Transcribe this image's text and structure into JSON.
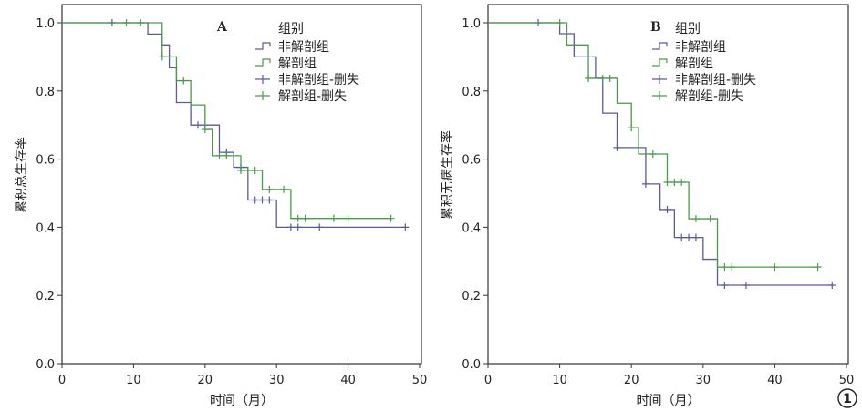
{
  "figure_number": "1",
  "chart_data": [
    {
      "type": "line",
      "subtype": "kaplan-meier step",
      "panel_label": "A",
      "xlabel": "时间（月）",
      "ylabel": "累积总生存率",
      "xlim": [
        0,
        50
      ],
      "ylim": [
        0,
        1.0
      ],
      "xticks": [
        "0",
        "10",
        "20",
        "30",
        "40",
        "50"
      ],
      "yticks": [
        "0.0",
        "0.2",
        "0.4",
        "0.6",
        "0.8",
        "1.0"
      ],
      "legend": {
        "title": "组别",
        "placement": "top-right",
        "entries": [
          "非解剖组",
          "解剖组",
          "非解剖组-删失",
          "解剖组-删失"
        ]
      },
      "series": [
        {
          "name": "非解剖组",
          "color": "#5a5b9a",
          "steps": [
            [
              0,
              1.0
            ],
            [
              12,
              0.967
            ],
            [
              14,
              0.935
            ],
            [
              15,
              0.868
            ],
            [
              16,
              0.766
            ],
            [
              18,
              0.7
            ],
            [
              22,
              0.62
            ],
            [
              24,
              0.576
            ],
            [
              26,
              0.48
            ],
            [
              30,
              0.4
            ]
          ],
          "end": 48,
          "censored": [
            7,
            19,
            23,
            25,
            27,
            28,
            29,
            32,
            33,
            36,
            48
          ]
        },
        {
          "name": "解剖组",
          "color": "#4a9a4a",
          "steps": [
            [
              0,
              1.0
            ],
            [
              14,
              0.9
            ],
            [
              16,
              0.83
            ],
            [
              18,
              0.759
            ],
            [
              20,
              0.687
            ],
            [
              21,
              0.61
            ],
            [
              25,
              0.567
            ],
            [
              28,
              0.511
            ],
            [
              32,
              0.426
            ]
          ],
          "end": 46,
          "censored": [
            9,
            11,
            14,
            17,
            20,
            22,
            23,
            25,
            26,
            27,
            29,
            31,
            33,
            34,
            38,
            40,
            46
          ]
        }
      ]
    },
    {
      "type": "line",
      "subtype": "kaplan-meier step",
      "panel_label": "B",
      "xlabel": "时间（月）",
      "ylabel": "累积无病生存率",
      "xlim": [
        0,
        50
      ],
      "ylim": [
        0,
        1.0
      ],
      "xticks": [
        "0",
        "10",
        "20",
        "30",
        "40",
        "50"
      ],
      "yticks": [
        "0.0",
        "0.2",
        "0.4",
        "0.6",
        "0.8",
        "1.0"
      ],
      "legend": {
        "title": "组别",
        "placement": "top-right",
        "entries": [
          "非解剖组",
          "解剖组",
          "非解剖组-删失",
          "解剖组-删失"
        ]
      },
      "series": [
        {
          "name": "非解剖组",
          "color": "#5a5b9a",
          "steps": [
            [
              0,
              1.0
            ],
            [
              10,
              0.968
            ],
            [
              12,
              0.9
            ],
            [
              15,
              0.837
            ],
            [
              16,
              0.735
            ],
            [
              18,
              0.634
            ],
            [
              22,
              0.527
            ],
            [
              24,
              0.452
            ],
            [
              26,
              0.37
            ],
            [
              30,
              0.306
            ],
            [
              32,
              0.23
            ]
          ],
          "end": 48,
          "censored": [
            7,
            18,
            22,
            25,
            27,
            28,
            29,
            33,
            36,
            48
          ]
        },
        {
          "name": "解剖组",
          "color": "#4a9a4a",
          "steps": [
            [
              0,
              1.0
            ],
            [
              11,
              0.935
            ],
            [
              14,
              0.837
            ],
            [
              18,
              0.764
            ],
            [
              20,
              0.692
            ],
            [
              21,
              0.615
            ],
            [
              25,
              0.532
            ],
            [
              28,
              0.425
            ],
            [
              32,
              0.283
            ]
          ],
          "end": 46,
          "censored": [
            10,
            14,
            16,
            17,
            20,
            23,
            25,
            26,
            27,
            29,
            31,
            33,
            34,
            40,
            46
          ]
        }
      ]
    }
  ]
}
